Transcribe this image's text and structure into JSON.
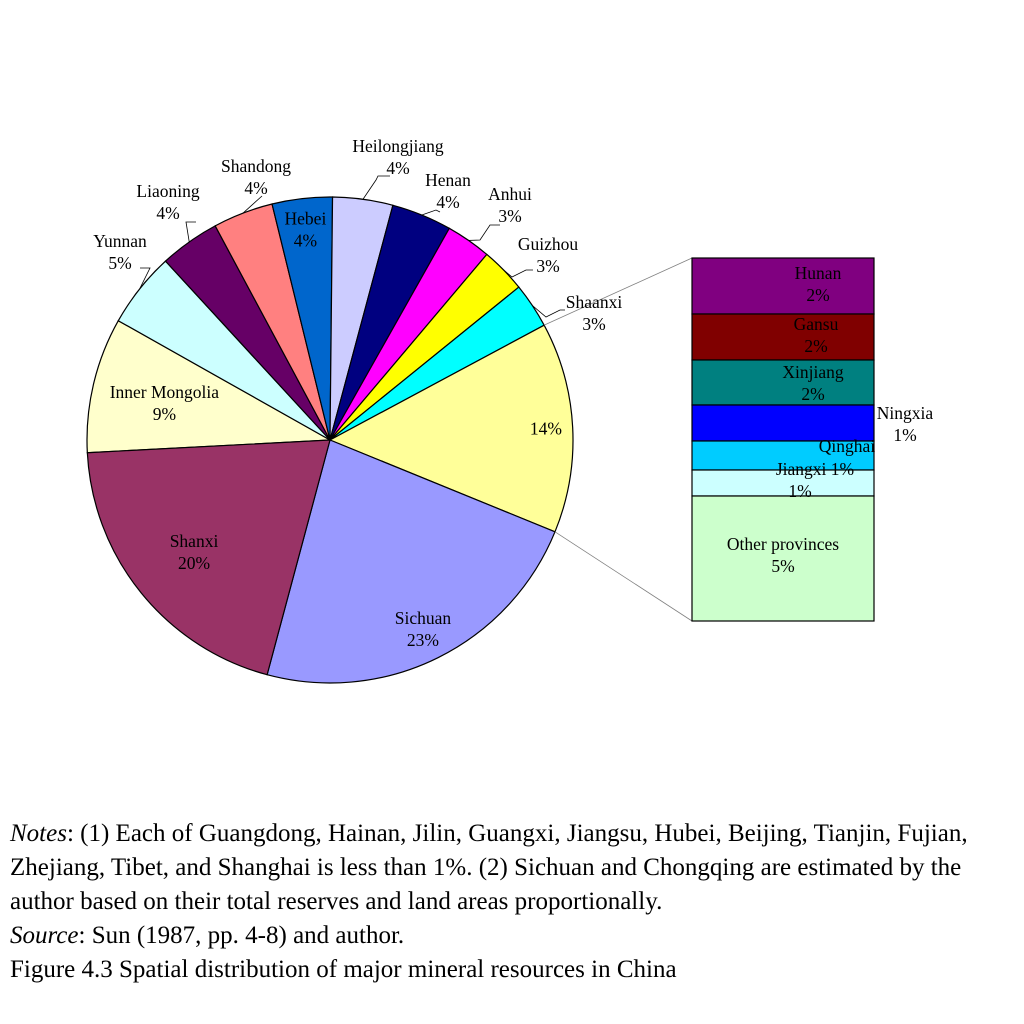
{
  "chart_data": {
    "type": "pie",
    "subtype": "bar-of-pie",
    "unit": "%",
    "slices": [
      {
        "label": "Inner Mongolia",
        "value": 9,
        "pct": "9%",
        "color": "#FFFFCC"
      },
      {
        "label": "Yunnan",
        "value": 5,
        "pct": "5%",
        "color": "#CCFFFF"
      },
      {
        "label": "Liaoning",
        "value": 4,
        "pct": "4%",
        "color": "#660066"
      },
      {
        "label": "Shandong",
        "value": 4,
        "pct": "4%",
        "color": "#FF8080"
      },
      {
        "label": "Hebei",
        "value": 4,
        "pct": "4%",
        "color": "#0066CC"
      },
      {
        "label": "Heilongjiang",
        "value": 4,
        "pct": "4%",
        "color": "#CCCCFF"
      },
      {
        "label": "Henan",
        "value": 4,
        "pct": "4%",
        "color": "#000080"
      },
      {
        "label": "Anhui",
        "value": 3,
        "pct": "3%",
        "color": "#FF00FF"
      },
      {
        "label": "Guizhou",
        "value": 3,
        "pct": "3%",
        "color": "#FFFF00"
      },
      {
        "label": "Shaanxi",
        "value": 3,
        "pct": "3%",
        "color": "#00FFFF"
      },
      {
        "label": "",
        "value": 14,
        "pct": "14%",
        "color": "#FFFF99"
      },
      {
        "label": "Sichuan",
        "value": 23,
        "pct": "23%",
        "color": "#9999FF"
      },
      {
        "label": "Shanxi",
        "value": 20,
        "pct": "20%",
        "color": "#993366"
      }
    ],
    "breakout": [
      {
        "label": "Hunan",
        "value": 2,
        "pct": "2%",
        "color": "#800080"
      },
      {
        "label": "Gansu",
        "value": 2,
        "pct": "2%",
        "color": "#800000"
      },
      {
        "label": "Xinjiang",
        "value": 2,
        "pct": "2%",
        "color": "#008080"
      },
      {
        "label": "Ningxia",
        "value": 1,
        "pct": "1%",
        "color": "#0000FF"
      },
      {
        "label": "Qinghai",
        "value": 1,
        "pct": "1%",
        "color": "#00CCFF"
      },
      {
        "label": "Jiangxi",
        "value": 1,
        "pct": "1%",
        "color": "#CCFFFF"
      },
      {
        "label": "Other provinces",
        "value": 5,
        "pct": "5%",
        "color": "#CCFFCC"
      }
    ]
  },
  "notes": {
    "notes_label": "Notes",
    "notes_text": ": (1) Each of Guangdong, Hainan, Jilin, Guangxi, Jiangsu, Hubei, Beijing, Tianjin, Fujian, Zhejiang, Tibet, and Shanghai is less than 1%. (2) Sichuan and Chongqing are estimated by the author based on their total reserves and land areas proportionally.",
    "source_label": "Source",
    "source_text": ": Sun (1987, pp. 4-8) and author.",
    "caption": "Figure 4.3 Spatial distribution of major mineral resources in China"
  }
}
